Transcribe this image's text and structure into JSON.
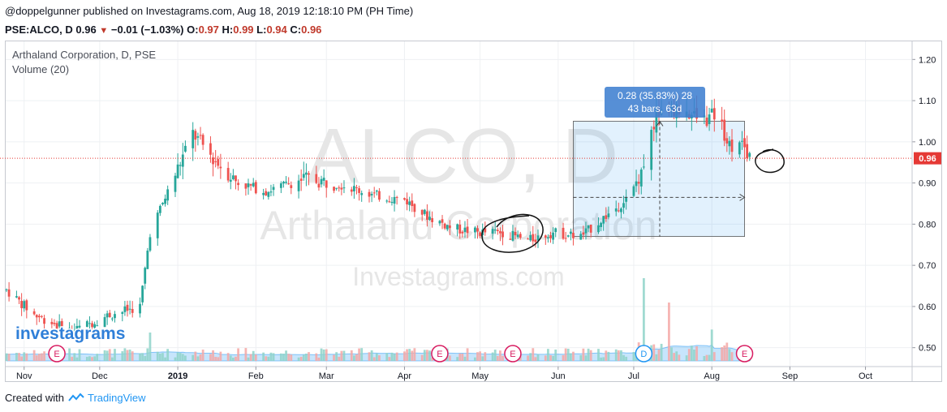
{
  "header": {
    "publisher_line": "@doppelgunner published on Investagrams.com, Aug 18, 2019 12:18:10 PM (PH Time)",
    "symbol": "PSE:ALCO, D",
    "last": "0.96",
    "change": "−0.01 (−1.03%)",
    "open_label": "O:",
    "open": "0.97",
    "high_label": "H:",
    "high": "0.99",
    "low_label": "L:",
    "low": "0.94",
    "close_label": "C:",
    "close": "0.96"
  },
  "legend": {
    "title": "Arthaland Corporation, D, PSE",
    "volume": "Volume (20)"
  },
  "watermark": {
    "big": "ALCO, D",
    "name": "Arthaland Corporation",
    "site": "Investagrams.com"
  },
  "logo_text": "investagrams",
  "price_tag": "0.96",
  "measure": {
    "line1": "0.28 (35.83%) 28",
    "line2": "43 bars, 63d"
  },
  "events": [
    {
      "label": "E",
      "date": "2018-11-14",
      "kind": "earnings"
    },
    {
      "label": "E",
      "date": "2019-04-15",
      "kind": "earnings"
    },
    {
      "label": "E",
      "date": "2019-05-14",
      "kind": "earnings"
    },
    {
      "label": "D",
      "date": "2019-07-05",
      "kind": "dividend"
    },
    {
      "label": "E",
      "date": "2019-08-14",
      "kind": "earnings"
    }
  ],
  "footer": {
    "created": "Created with",
    "brand": "TradingView"
  },
  "colors": {
    "up": "#26a69a",
    "down": "#ef5350",
    "grid": "#eef0f3",
    "measure": "#3f7fd0",
    "event_e": "#d81b60",
    "event_d": "#2196f3"
  },
  "chart_data": {
    "type": "candlestick",
    "x_ticks": [
      "Nov",
      "Dec",
      "2019",
      "Feb",
      "Mar",
      "Apr",
      "May",
      "Jun",
      "Jul",
      "Aug",
      "Sep",
      "Oct"
    ],
    "y_ticks": [
      "1.20",
      "1.10",
      "1.00",
      "0.90",
      "0.80",
      "0.70",
      "0.60",
      "0.50"
    ],
    "ylim": [
      0.458,
      1.242
    ],
    "xlim": [
      "2018-10-25",
      "2019-10-15"
    ],
    "last_price": 0.96,
    "grid": true,
    "price_path": [
      [
        "2018-10-25",
        0.64
      ],
      [
        "2018-11-05",
        0.58
      ],
      [
        "2018-11-20",
        0.54
      ],
      [
        "2018-12-05",
        0.58
      ],
      [
        "2018-12-17",
        0.6
      ],
      [
        "2018-12-21",
        0.78
      ],
      [
        "2018-12-26",
        0.85
      ],
      [
        "2019-01-02",
        0.95
      ],
      [
        "2019-01-07",
        1.02
      ],
      [
        "2019-01-15",
        0.96
      ],
      [
        "2019-01-25",
        0.9
      ],
      [
        "2019-02-05",
        0.88
      ],
      [
        "2019-02-20",
        0.91
      ],
      [
        "2019-03-05",
        0.9
      ],
      [
        "2019-03-20",
        0.87
      ],
      [
        "2019-04-01",
        0.86
      ],
      [
        "2019-04-10",
        0.82
      ],
      [
        "2019-04-20",
        0.79
      ],
      [
        "2019-04-30",
        0.78
      ],
      [
        "2019-05-10",
        0.78
      ],
      [
        "2019-05-20",
        0.76
      ],
      [
        "2019-05-30",
        0.78
      ],
      [
        "2019-06-10",
        0.77
      ],
      [
        "2019-06-20",
        0.82
      ],
      [
        "2019-06-30",
        0.87
      ],
      [
        "2019-07-05",
        0.95
      ],
      [
        "2019-07-10",
        1.07
      ],
      [
        "2019-07-20",
        1.08
      ],
      [
        "2019-07-28",
        1.05
      ],
      [
        "2019-08-03",
        1.07
      ],
      [
        "2019-08-08",
        0.99
      ],
      [
        "2019-08-12",
        1.01
      ],
      [
        "2019-08-16",
        0.96
      ]
    ],
    "volume_spikes": [
      {
        "date": "2018-12-21",
        "volume": 0.35,
        "dir": "up"
      },
      {
        "date": "2019-07-05",
        "volume": 1.0,
        "dir": "up"
      },
      {
        "date": "2019-07-15",
        "volume": 0.7,
        "dir": "down"
      },
      {
        "date": "2019-08-01",
        "volume": 0.35,
        "dir": "down"
      }
    ],
    "measure_range": {
      "from_date": "2019-06-07",
      "to_date": "2019-08-14",
      "from_price": 0.77,
      "to_price": 1.05
    }
  }
}
